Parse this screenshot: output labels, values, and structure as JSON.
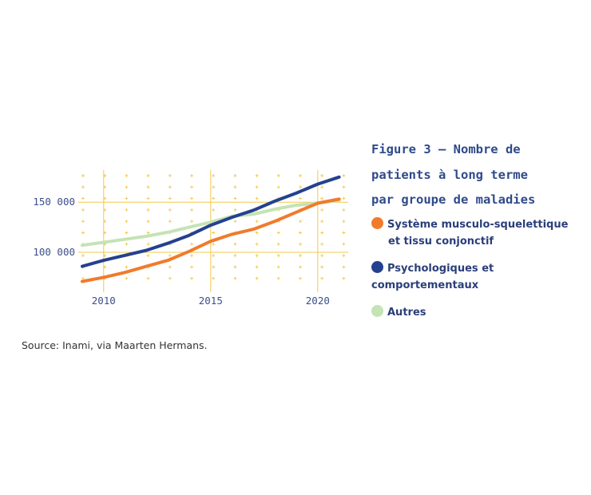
{
  "figure": {
    "title_lines": [
      "Figure 3 – Nombre de",
      "patients à long terme",
      "par groupe de maladies"
    ]
  },
  "legend": [
    {
      "line1": "Système musculo-squelettique",
      "line2": "et tissu conjonctif",
      "color": "#f07b2b"
    },
    {
      "line1": "Psychologiques et",
      "line2": "comportementaux",
      "color": "#24418f"
    },
    {
      "line1": "Autres",
      "line2": "",
      "color": "#c5e3b5"
    }
  ],
  "source": "Source: Inami, via Maarten Hermans.",
  "colors": {
    "grid": "#f3c84a",
    "tick_text": "#3b4f8a"
  },
  "chart_data": {
    "type": "line",
    "x_ticks": [
      2010,
      2015,
      2020
    ],
    "x_tick_labels": [
      "2010",
      "2015",
      "2020"
    ],
    "y_ticks": [
      100000,
      150000
    ],
    "y_tick_labels": [
      "100 000",
      "150 000"
    ],
    "xlim": [
      2009,
      2021.2
    ],
    "ylim": [
      65000,
      182000
    ],
    "grid": true,
    "legend_position": "right",
    "x": [
      2009,
      2010,
      2011,
      2012,
      2013,
      2014,
      2015,
      2016,
      2017,
      2018,
      2019,
      2020,
      2021
    ],
    "series": [
      {
        "name": "Système musculo-squelettique et tissu conjonctif",
        "color": "#f07b2b",
        "values": [
          71000,
          75000,
          80000,
          86000,
          92000,
          101000,
          111000,
          118000,
          123000,
          131000,
          140000,
          149000,
          153000
        ]
      },
      {
        "name": "Psychologiques et comportementaux",
        "color": "#24418f",
        "values": [
          86000,
          92000,
          97000,
          102000,
          109000,
          117000,
          127000,
          135000,
          142000,
          151000,
          159000,
          168000,
          175000
        ]
      },
      {
        "name": "Autres",
        "color": "#c5e3b5",
        "values": [
          107000,
          110000,
          113000,
          116000,
          120000,
          125000,
          130000,
          136000,
          138000,
          143000,
          147000,
          149000,
          152000
        ]
      }
    ]
  }
}
